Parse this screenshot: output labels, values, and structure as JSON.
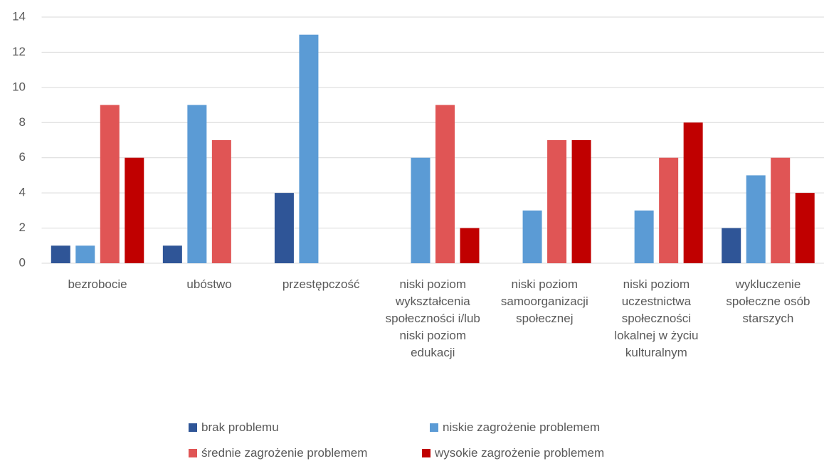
{
  "chart_data": {
    "type": "bar",
    "categories": [
      "bezrobocie",
      "ubóstwo",
      "przestępczość",
      "niski poziom wykształcenia społeczności i/lub niski poziom edukacji",
      "niski poziom samoorganizacji społecznej",
      "niski poziom uczestnictwa społeczności lokalnej w życiu kulturalnym",
      "wykluczenie społeczne osób starszych"
    ],
    "series": [
      {
        "name": "brak problemu",
        "color": "#2f5597",
        "values": [
          1,
          1,
          4,
          0,
          0,
          0,
          2
        ]
      },
      {
        "name": "niskie zagrożenie problemem",
        "color": "#5b9bd5",
        "values": [
          1,
          9,
          13,
          6,
          3,
          3,
          5
        ]
      },
      {
        "name": "średnie zagrożenie problemem",
        "color": "#e05555",
        "values": [
          9,
          7,
          0,
          9,
          7,
          6,
          6
        ]
      },
      {
        "name": "wysokie zagrożenie problemem",
        "color": "#c00000",
        "values": [
          6,
          0,
          0,
          2,
          7,
          8,
          4
        ]
      }
    ],
    "ylim": [
      0,
      14
    ],
    "yticks": [
      0,
      2,
      4,
      6,
      8,
      10,
      12,
      14
    ],
    "grid": true,
    "legend": "bottom"
  }
}
